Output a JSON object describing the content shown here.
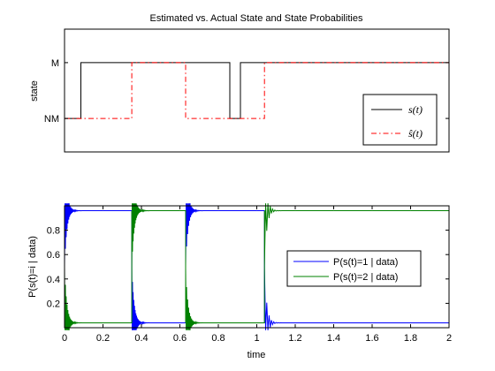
{
  "chart_data": [
    {
      "type": "line",
      "title": "Estimated vs. Actual State and State Probabilities",
      "ylabel": "state",
      "xlabel": "",
      "xlim": [
        0,
        2
      ],
      "ylim": [
        -0.6,
        1.6
      ],
      "yticks": [
        0,
        1
      ],
      "ytick_labels": [
        "NM",
        "M"
      ],
      "series": [
        {
          "name": "s(t)",
          "color": "#000000",
          "style": "solid",
          "x": [
            0,
            0.085,
            0.085,
            0.86,
            0.86,
            0.915,
            0.915,
            2
          ],
          "y": [
            0,
            0,
            1,
            1,
            0,
            0,
            1,
            1
          ]
        },
        {
          "name": "ŝ(t)",
          "color": "#ff0000",
          "style": "dash-dot",
          "x": [
            0,
            0.35,
            0.35,
            0.63,
            0.63,
            1.04,
            1.04,
            2
          ],
          "y": [
            0,
            0,
            1,
            1,
            0,
            0,
            1,
            1
          ]
        }
      ],
      "legend": "lower-right"
    },
    {
      "type": "line",
      "title": "",
      "xlabel": "time",
      "ylabel": "P(s(t)=i | data)",
      "xlim": [
        0,
        2
      ],
      "ylim": [
        0,
        1
      ],
      "xticks": [
        0,
        0.2,
        0.4,
        0.6,
        0.8,
        1,
        1.2,
        1.4,
        1.6,
        1.8,
        2
      ],
      "xtick_labels": [
        "0",
        "0.2",
        "0.4",
        "0.6",
        "0.8",
        "1",
        "1.2",
        "1.4",
        "1.6",
        "1.8",
        "2"
      ],
      "yticks": [
        0.2,
        0.4,
        0.6,
        0.8
      ],
      "ytick_labels": [
        "0.2",
        "0.4",
        "0.6",
        "0.8"
      ],
      "series": [
        {
          "name": "P(s(t)=1 | data)",
          "color": "#0000ff",
          "x": [
            0,
            0.35,
            0.35,
            0.63,
            0.63,
            1.04,
            1.04,
            2
          ],
          "y": [
            0.96,
            0.96,
            0.04,
            0.04,
            0.96,
            0.96,
            0.04,
            0.04
          ]
        },
        {
          "name": "P(s(t)=2 | data)",
          "color": "#008000",
          "x": [
            0,
            0.35,
            0.35,
            0.63,
            0.63,
            1.04,
            1.04,
            2
          ],
          "y": [
            0.04,
            0.04,
            0.96,
            0.96,
            0.04,
            0.04,
            0.96,
            0.96
          ]
        }
      ],
      "legend": "right"
    }
  ]
}
